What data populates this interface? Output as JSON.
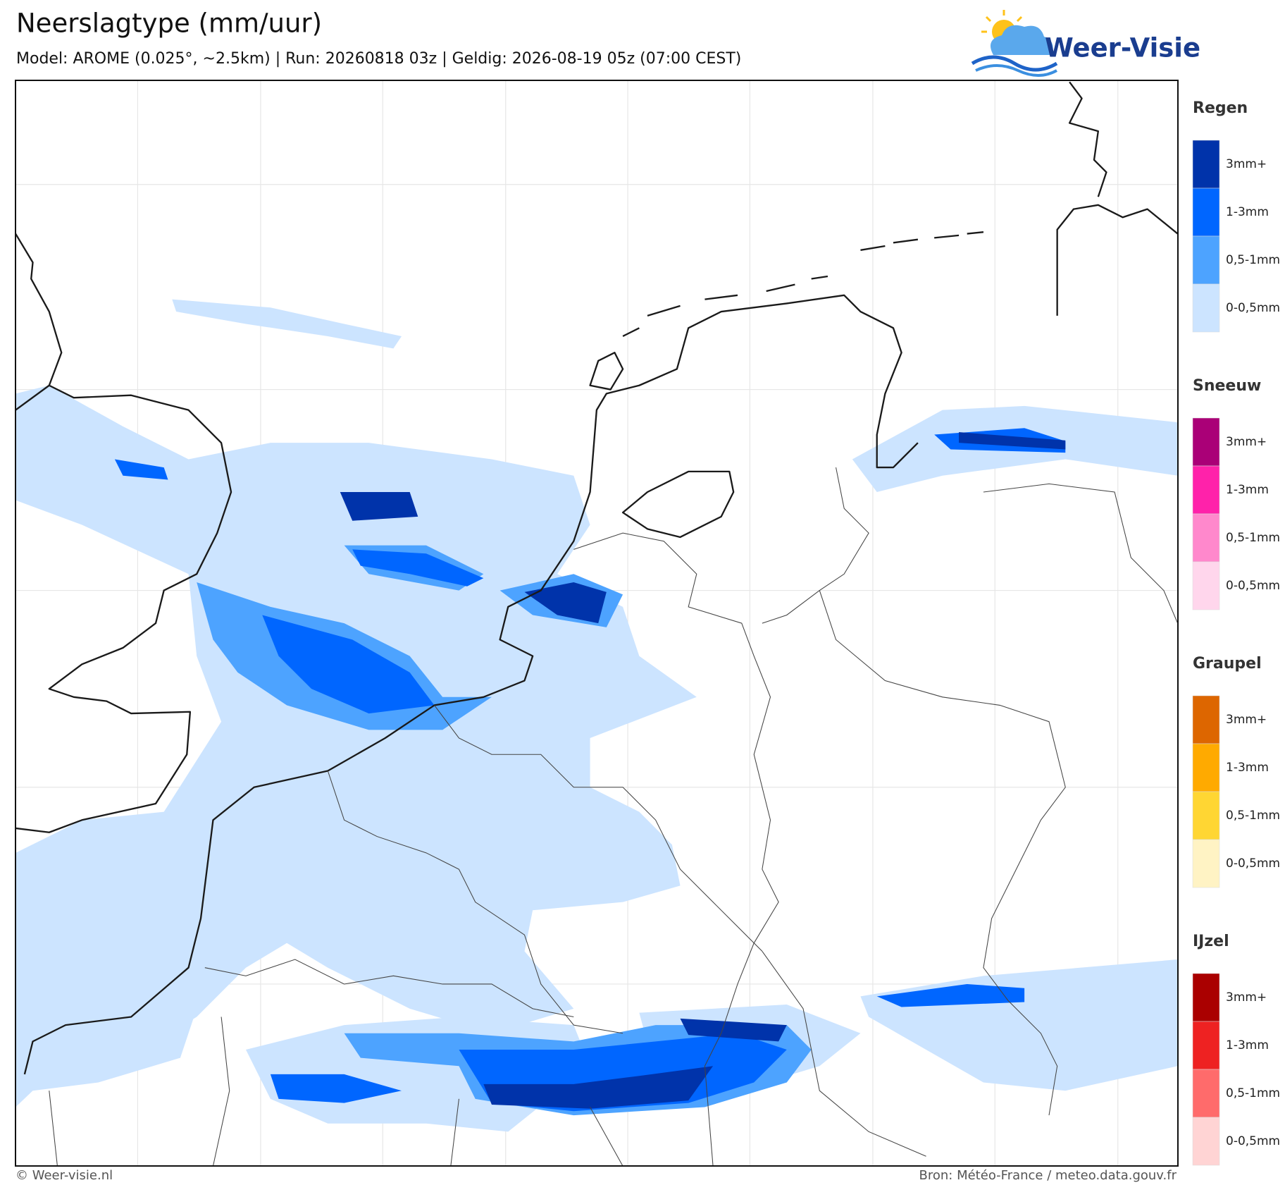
{
  "header": {
    "title": "Neerslagtype (mm/uur)",
    "subtitle": "Model: AROME (0.025°, ~2.5km)  |  Run: 20260818 03z  |  Geldig: 2026-08-19 05z (07:00 CEST)"
  },
  "logo": {
    "text": "Weer-Visie"
  },
  "legend": {
    "sections": [
      {
        "title": "Regen",
        "items": [
          {
            "label": "3mm+",
            "color": "#0033aa"
          },
          {
            "label": "1-3mm",
            "color": "#0066ff"
          },
          {
            "label": "0,5-1mm",
            "color": "#4da3ff"
          },
          {
            "label": "0-0,5mm",
            "color": "#cce4ff"
          }
        ]
      },
      {
        "title": "Sneeuw",
        "items": [
          {
            "label": "3mm+",
            "color": "#aa0077"
          },
          {
            "label": "1-3mm",
            "color": "#ff22aa"
          },
          {
            "label": "0,5-1mm",
            "color": "#ff88cc"
          },
          {
            "label": "0-0,5mm",
            "color": "#ffd6ec"
          }
        ]
      },
      {
        "title": "Graupel",
        "items": [
          {
            "label": "3mm+",
            "color": "#dd6600"
          },
          {
            "label": "1-3mm",
            "color": "#ffaa00"
          },
          {
            "label": "0,5-1mm",
            "color": "#ffd633"
          },
          {
            "label": "0-0,5mm",
            "color": "#fff3c4"
          }
        ]
      },
      {
        "title": "IJzel",
        "items": [
          {
            "label": "3mm+",
            "color": "#aa0000"
          },
          {
            "label": "1-3mm",
            "color": "#ee2222"
          },
          {
            "label": "0,5-1mm",
            "color": "#ff6b6b"
          },
          {
            "label": "0-0,5mm",
            "color": "#ffd4d4"
          }
        ]
      }
    ]
  },
  "footer": {
    "left": "© Weer-visie.nl",
    "right": "Bron: Météo-France / meteo.data.gouv.fr"
  }
}
